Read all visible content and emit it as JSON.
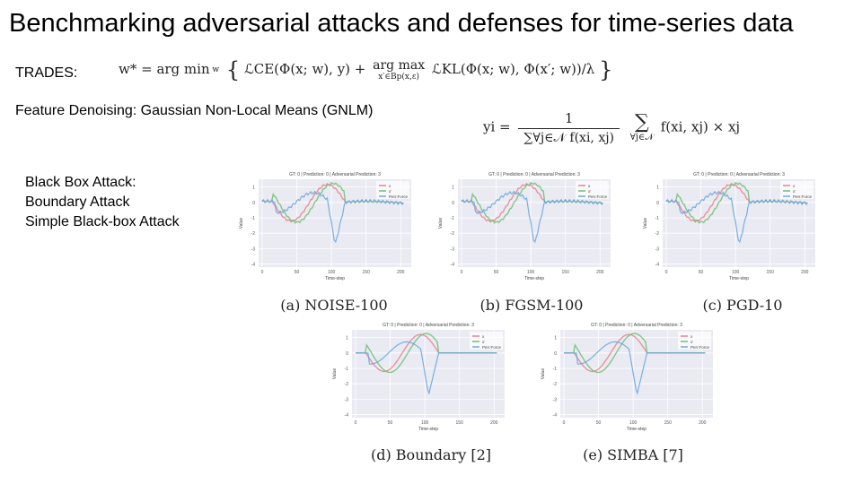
{
  "title": "Benchmarking adversarial attacks and defenses for time-series data",
  "trades": {
    "label": "TRADES:",
    "formula": {
      "lhs": "w* = arg min",
      "lhs_sub": "w",
      "brace_open": "{",
      "term1": "ℒCE(Φ(x; w), y) +",
      "argmax": "arg max",
      "argmax_sub": "x′∈Bp(x,ε)",
      "term2": "ℒKL(Φ(x; w), Φ(x′; w))/λ",
      "brace_close": "}"
    }
  },
  "gnlm": {
    "label": "Feature Denoising: Gaussian Non-Local Means (GNLM)",
    "formula": {
      "lhs": "yi =",
      "numerator": "1",
      "denominator": "∑∀j∈𝒩 f(xi, xj)",
      "sum_symbol": "∑",
      "sum_sub": "∀j∈𝒩",
      "rhs": "f(xi, xj) × xj"
    }
  },
  "black_box": {
    "lines": [
      "Black Box Attack:",
      "Boundary Attack",
      "Simple Black-box Attack"
    ]
  },
  "panels": [
    {
      "key": "noise",
      "header": "GT: 0 | Prediction: 0 | Adversarial Prediction: 3",
      "caption": "(a) NOISE-100",
      "xlabel": "Time-step",
      "ylabel": "Value",
      "legend": [
        "x",
        "x'",
        "Perr.Force"
      ]
    },
    {
      "key": "fgsm",
      "header": "GT: 0 | Prediction: 0 | Adversarial Prediction: 3",
      "caption": "(b) FGSM-100",
      "xlabel": "Time-step",
      "ylabel": "Value",
      "legend": [
        "x",
        "x'",
        "Perr.Force"
      ]
    },
    {
      "key": "pgd",
      "header": "GT: 0 | Prediction: 0 | Adversarial Prediction: 3",
      "caption": "(c) PGD-10",
      "xlabel": "Time-step",
      "ylabel": "Value",
      "legend": [
        "x",
        "x'",
        "Perr.Force"
      ]
    },
    {
      "key": "boundary",
      "header": "GT: 0 | Prediction: 0 | Adversarial Prediction: 3",
      "caption": "(d) Boundary [2]",
      "xlabel": "Time-step",
      "ylabel": "Value",
      "legend": [
        "x",
        "x'",
        "Perr.Force"
      ]
    },
    {
      "key": "simba",
      "header": "GT: 0 | Prediction: 0 | Adversarial Prediction: 3",
      "caption": "(e) SIMBA [7]",
      "xlabel": "Time-step",
      "ylabel": "Value",
      "legend": [
        "x",
        "x'",
        "Perr.Force"
      ]
    }
  ],
  "plot_axes": {
    "x_ticks": [
      "0",
      "50",
      "100",
      "150",
      "200"
    ],
    "y_ticks": [
      "1",
      "0",
      "-1",
      "-2",
      "-3",
      "-4"
    ]
  },
  "colors": {
    "series_x": "#e8838f",
    "series_adv": "#6fbf73",
    "series_perturbation": "#6aa9e0",
    "plot_bg": "#eaeaf2",
    "grid": "#ffffff"
  }
}
